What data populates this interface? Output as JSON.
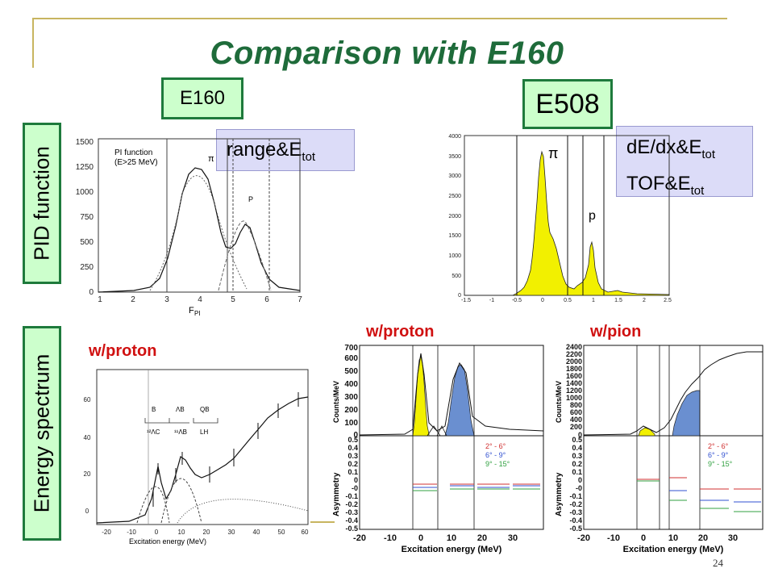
{
  "slide": {
    "title": "Comparison with E160",
    "page_number": "24",
    "accent_color": "#1e6b3a",
    "label_fill": "#ccffcc",
    "histogram_yellow": "#f2f000",
    "histogram_blue": "#6a8fd0"
  },
  "labels": {
    "e160": "E160",
    "e508": "E508",
    "range_etot_main": "range&E",
    "range_etot_sub": "tot",
    "dedx_line1_main": "dE/dx&E",
    "dedx_line1_sub": "tot",
    "tof_line2_main": "TOF&E",
    "tof_line2_sub": "tot",
    "pid_function": "PID function",
    "energy_spectrum": "Energy spectrum",
    "w_proton_left": "w/proton",
    "w_proton_right": "w/proton",
    "w_pion": "w/pion"
  },
  "plot_e160_pid": {
    "legend_line1": "PI function",
    "legend_line2": "(E>25 MeV)",
    "pi_symbol": "π",
    "p_symbol": "P",
    "xlabel": "F",
    "xlabel_sub": "PI",
    "xticks": [
      "1",
      "2",
      "3",
      "4",
      "5",
      "6",
      "7"
    ],
    "yticks": [
      "0",
      "250",
      "500",
      "750",
      "1000",
      "1250",
      "1500"
    ]
  },
  "plot_e508_pid": {
    "pi_symbol": "π",
    "p_symbol": "p",
    "xticks": [
      "-1.5",
      "-1",
      "-0.5",
      "0",
      "0.5",
      "1",
      "1.5",
      "2",
      "2.5"
    ],
    "yticks": [
      "0",
      "500",
      "1000",
      "1500",
      "2000",
      "2500",
      "3000",
      "3500",
      "4000"
    ]
  },
  "plot_e160_energy": {
    "xlabel": "Excitation energy (MeV)",
    "xticks": [
      "-20",
      "-10",
      "0",
      "10",
      "20",
      "30",
      "40",
      "50",
      "60"
    ],
    "yticks": [
      "0",
      "20",
      "40",
      "60"
    ],
    "group_labels": [
      "B",
      "ΛB",
      "QB"
    ],
    "sub_labels": [
      "¹²ΛC",
      "¹¹ΛB",
      "LH"
    ]
  },
  "plot_e508_proton": {
    "ylabel_top": "Counts/MeV",
    "ylabel_bottom": "Asymmetry",
    "xlabel": "Excitation energy (MeV)",
    "xticks": [
      "-20",
      "-10",
      "0",
      "10",
      "20",
      "30"
    ],
    "yticks_top": [
      "0",
      "100",
      "200",
      "300",
      "400",
      "500",
      "600",
      "700"
    ],
    "yticks_bottom": [
      "0.5",
      "0.4",
      "0.3",
      "0.2",
      "0.1",
      "0",
      "-0",
      "-0.1",
      "-0.2",
      "-0.3",
      "-0.4",
      "-0.5"
    ],
    "legend": [
      "2° - 6°",
      "6° - 9°",
      "9° - 15°"
    ]
  },
  "plot_e508_pion": {
    "ylabel_top": "Counts/MeV",
    "ylabel_bottom": "Asymmetry",
    "xlabel": "Excitation energy (MeV)",
    "xticks": [
      "-20",
      "-10",
      "0",
      "10",
      "20",
      "30"
    ],
    "yticks_top": [
      "0",
      "200",
      "400",
      "600",
      "800",
      "1000",
      "1200",
      "1400",
      "1600",
      "1800",
      "2000",
      "2200",
      "2400"
    ],
    "yticks_bottom": [
      "0.5",
      "0.4",
      "0.3",
      "0.2",
      "0.1",
      "0",
      "-0",
      "-0.1",
      "-0.2",
      "-0.3",
      "-0.4",
      "-0.5"
    ],
    "legend": [
      "2° - 6°",
      "6° - 9°",
      "9° - 15°"
    ]
  }
}
